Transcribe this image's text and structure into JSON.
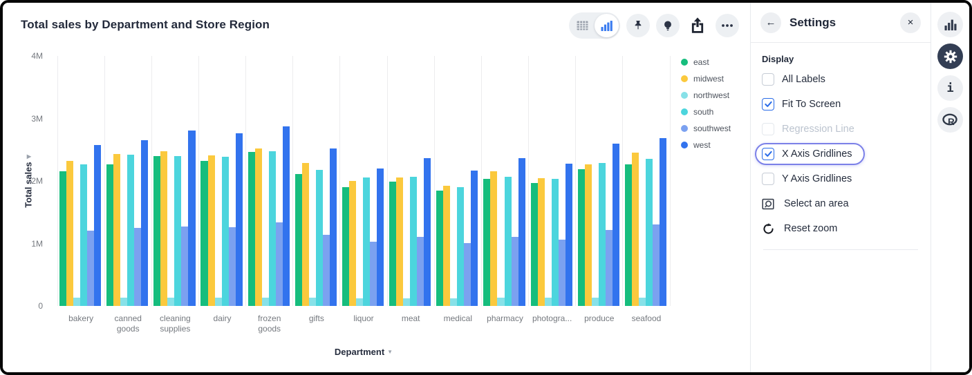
{
  "header": {
    "title": "Total sales by Department and Store Region"
  },
  "toolbar": {
    "icons": [
      "table-view-icon",
      "bar-chart-view-icon",
      "pin-icon",
      "lightbulb-icon",
      "share-icon",
      "ellipsis-icon"
    ],
    "selected_view": "bar-chart"
  },
  "chart_data": {
    "type": "bar",
    "title": "Total sales by Department and Store Region",
    "xlabel": "Department",
    "ylabel": "Total sales",
    "ylim_millions": [
      0,
      4
    ],
    "y_ticks": [
      "0",
      "1M",
      "2M",
      "3M",
      "4M"
    ],
    "grid": "x-gridlines-only",
    "legend_position": "right",
    "values_unit": "millions",
    "categories": [
      "bakery",
      "canned goods",
      "cleaning supplies",
      "dairy",
      "frozen goods",
      "gifts",
      "liquor",
      "meat",
      "medical",
      "pharmacy",
      "photogra...",
      "produce",
      "seafood"
    ],
    "series": [
      {
        "name": "east",
        "color": "#16bd7d",
        "values": [
          2.15,
          2.27,
          2.4,
          2.32,
          2.46,
          2.11,
          1.9,
          1.99,
          1.85,
          2.03,
          1.97,
          2.19,
          2.27
        ]
      },
      {
        "name": "midwest",
        "color": "#fbc93d",
        "values": [
          2.32,
          2.43,
          2.47,
          2.41,
          2.52,
          2.29,
          2.0,
          2.06,
          1.92,
          2.15,
          2.04,
          2.26,
          2.45
        ]
      },
      {
        "name": "northwest",
        "color": "#87e1e8",
        "values": [
          0.13,
          0.13,
          0.13,
          0.13,
          0.13,
          0.13,
          0.12,
          0.12,
          0.12,
          0.13,
          0.13,
          0.13,
          0.13
        ]
      },
      {
        "name": "south",
        "color": "#4cd5dd",
        "values": [
          2.27,
          2.42,
          2.4,
          2.39,
          2.47,
          2.18,
          2.06,
          2.07,
          1.9,
          2.07,
          2.03,
          2.29,
          2.35
        ]
      },
      {
        "name": "southwest",
        "color": "#7ba1f0",
        "values": [
          1.21,
          1.25,
          1.27,
          1.26,
          1.34,
          1.14,
          1.03,
          1.11,
          1.01,
          1.1,
          1.06,
          1.22,
          1.3
        ]
      },
      {
        "name": "west",
        "color": "#3273ee",
        "values": [
          2.57,
          2.65,
          2.81,
          2.76,
          2.87,
          2.52,
          2.2,
          2.37,
          2.17,
          2.37,
          2.28,
          2.6,
          2.68
        ]
      }
    ]
  },
  "settings": {
    "title": "Settings",
    "section_label": "Display",
    "options": [
      {
        "label": "All Labels",
        "checked": false,
        "disabled": false,
        "focused": false
      },
      {
        "label": "Fit To Screen",
        "checked": true,
        "disabled": false,
        "focused": false
      },
      {
        "label": "Regression Line",
        "checked": false,
        "disabled": true,
        "focused": false
      },
      {
        "label": "X Axis Gridlines",
        "checked": true,
        "disabled": false,
        "focused": true
      },
      {
        "label": "Y Axis Gridlines",
        "checked": false,
        "disabled": false,
        "focused": false
      }
    ],
    "actions": [
      {
        "label": "Select an area",
        "icon": "area-select-icon"
      },
      {
        "label": "Reset zoom",
        "icon": "reset-zoom-icon"
      }
    ]
  },
  "sidebar": {
    "items": [
      {
        "icon": "bar-chart-icon",
        "active": false
      },
      {
        "icon": "gear-icon",
        "active": true
      },
      {
        "icon": "info-icon",
        "active": false
      },
      {
        "icon": "r-logo-icon",
        "active": false
      }
    ]
  }
}
